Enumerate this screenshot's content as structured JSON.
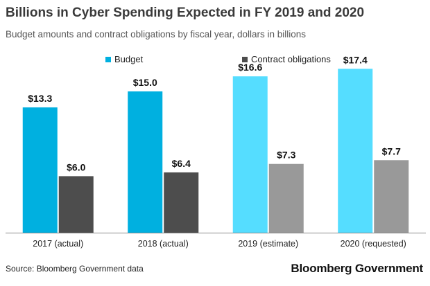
{
  "chart_data": {
    "type": "bar",
    "title": "Billions in Cyber Spending Expected in FY 2019 and 2020",
    "subtitle": "Budget amounts and contract obligations by fiscal year, dollars in billions",
    "categories": [
      "2017 (actual)",
      "2018 (actual)",
      "2019 (estimate)",
      "2020 (requested)"
    ],
    "series": [
      {
        "name": "Budget",
        "values": [
          13.3,
          15.0,
          16.6,
          17.4
        ],
        "labels": [
          "$13.3",
          "$15.0",
          "$16.6",
          "$17.4"
        ],
        "colors": [
          "#00b0e0",
          "#00b0e0",
          "#55ddff",
          "#55ddff"
        ],
        "legend_color": "#00b0e0"
      },
      {
        "name": "Contract obligations",
        "values": [
          6.0,
          6.4,
          7.3,
          7.7
        ],
        "labels": [
          "$6.0",
          "$6.4",
          "$7.3",
          "$7.7"
        ],
        "colors": [
          "#4d4d4d",
          "#4d4d4d",
          "#999999",
          "#999999"
        ],
        "legend_color": "#4d4d4d"
      }
    ],
    "xlabel": "",
    "ylabel": "",
    "ylim": [
      0,
      20
    ],
    "grid": false,
    "legend": "top-left",
    "axis_color": "#888888"
  },
  "footer": {
    "source": "Source: Bloomberg Government data",
    "brand": "Bloomberg Government"
  }
}
